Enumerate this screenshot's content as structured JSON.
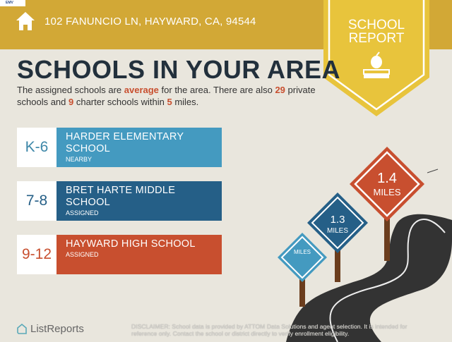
{
  "header": {
    "brand_mini": "EMV",
    "address": "102 FANUNCIO LN, HAYWARD, CA, 94544",
    "badge_line1": "SCHOOL",
    "badge_line2": "REPORT"
  },
  "title": "SCHOOLS IN YOUR AREA",
  "description": {
    "p1": "The assigned schools are ",
    "rating": "average",
    "p2": " for the area. There are also ",
    "private_count": "29",
    "p3": " private schools and ",
    "charter_count": "9",
    "p4": " charter schools within ",
    "radius": "5",
    "p5": " miles."
  },
  "schools": [
    {
      "grades": "K-6",
      "name": "HARDER ELEMENTARY SCHOOL",
      "status": "NEARBY",
      "color": "#449ac0",
      "grade_color": "#3d87a8"
    },
    {
      "grades": "7-8",
      "name": "BRET HARTE MIDDLE SCHOOL",
      "status": "ASSIGNED",
      "color": "#255f87",
      "grade_color": "#255f87"
    },
    {
      "grades": "9-12",
      "name": "HAYWARD HIGH SCHOOL",
      "status": "ASSIGNED",
      "color": "#c84f2f",
      "grade_color": "#c84f2f"
    }
  ],
  "signs": [
    {
      "distance": "",
      "unit": "MILES",
      "color": "#449ac0"
    },
    {
      "distance": "1.3",
      "unit": "MILES",
      "color": "#255f87"
    },
    {
      "distance": "1.4",
      "unit": "MILES",
      "color": "#c84f2f"
    }
  ],
  "footer": {
    "logo": "ListReports",
    "disclaimer_label": "DISCLAIMER:",
    "disclaimer": " School data is provided by ATTOM Data Solutions and agent selection. It is intended for reference only. Contact the school or district directly to verify enrollment eligibility."
  }
}
